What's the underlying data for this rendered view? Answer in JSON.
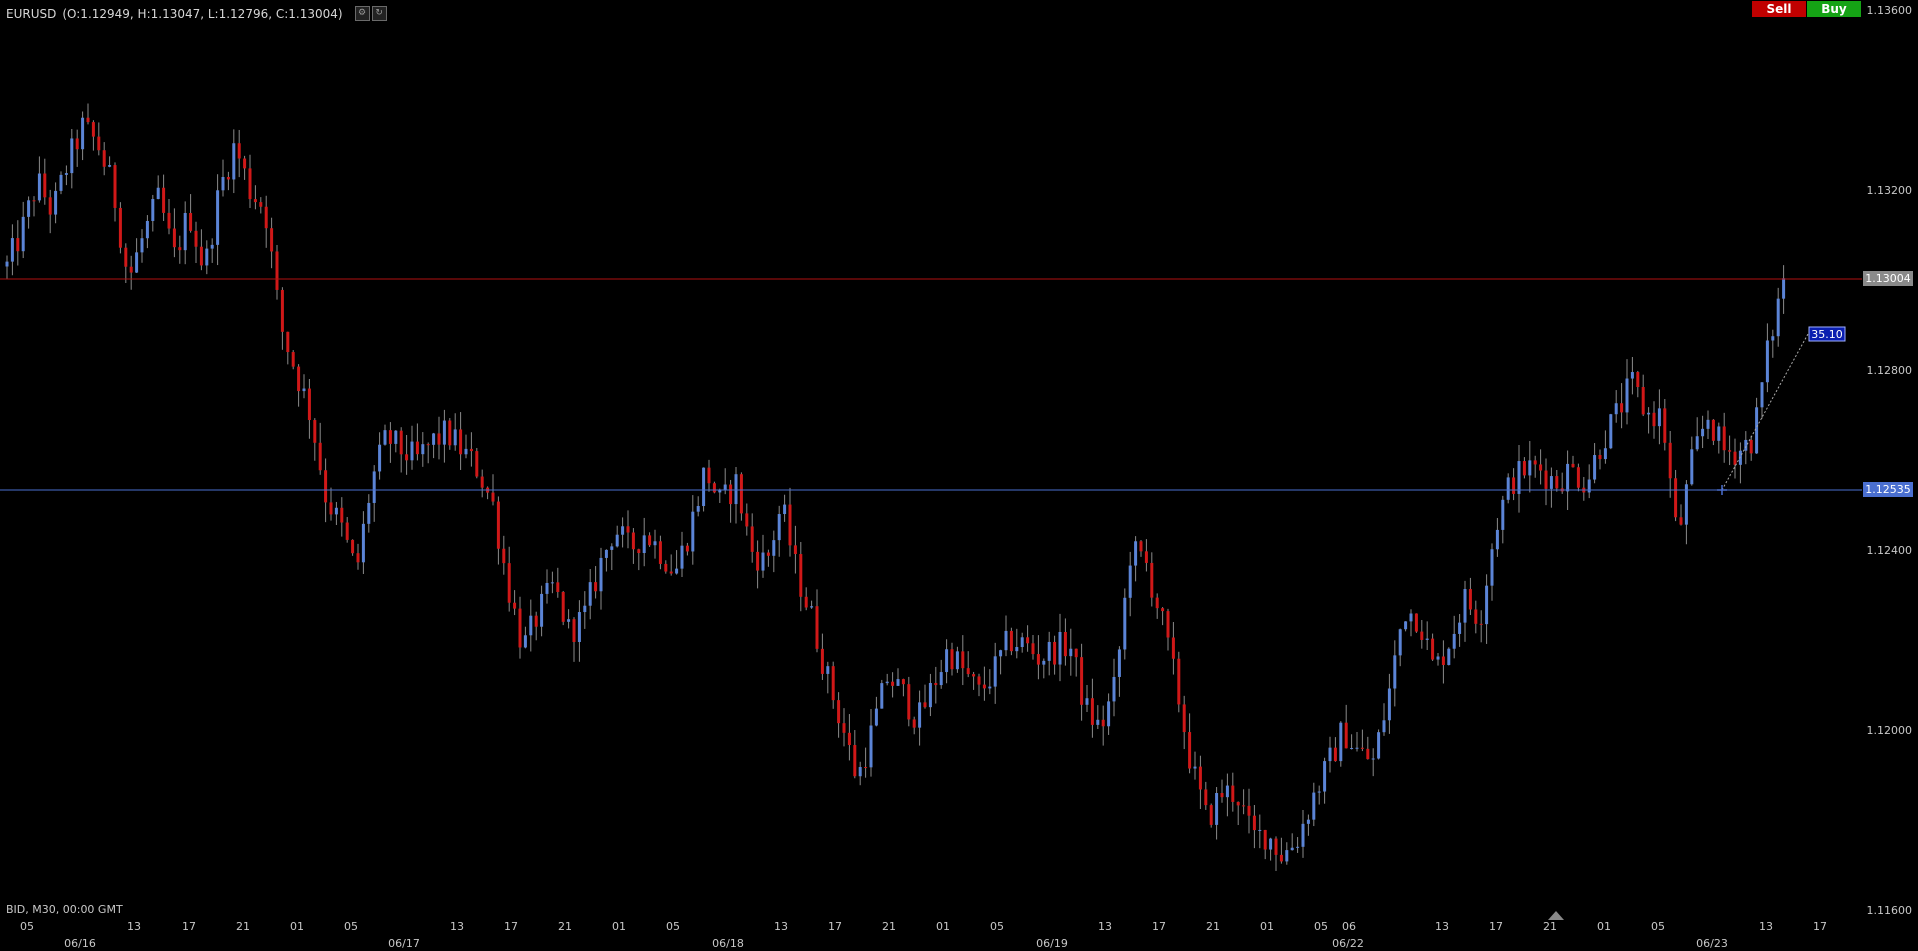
{
  "header": {
    "symbol": "EURUSD",
    "ohlc": "(O:1.12949, H:1.13047, L:1.12796, C:1.13004)",
    "icons": [
      "settings-icon",
      "refresh-icon"
    ]
  },
  "trade_buttons": {
    "sell_label": "Sell",
    "buy_label": "Buy",
    "sell_color": "#c00000",
    "buy_color": "#15a315"
  },
  "footer_text": "BID, M30, 00:00 GMT",
  "price_axis": {
    "ticks": [
      "1.13600",
      "1.13200",
      "1.12800",
      "1.12400",
      "1.12000",
      "1.11600"
    ],
    "current_price_label": "1.13004",
    "line_price_label": "1.12535"
  },
  "time_axis": {
    "hour_labels": [
      "05",
      "13",
      "17",
      "21",
      "01",
      "05",
      "13",
      "17",
      "21",
      "01",
      "05",
      "13",
      "17",
      "21",
      "01",
      "05",
      "13",
      "17",
      "21",
      "01",
      "05",
      "06",
      "13",
      "17",
      "21",
      "01",
      "05",
      "13",
      "17"
    ],
    "date_labels": [
      "06/16",
      "06/17",
      "06/18",
      "06/19",
      "06/22",
      "06/23"
    ]
  },
  "overlay": {
    "measure_label": "35.10"
  },
  "colors": {
    "bullish": "#5b84d6",
    "bearish": "#d01818",
    "current_line": "#b01010",
    "horizontal_line": "#4a6fd0"
  },
  "chart_data": {
    "type": "candlestick",
    "symbol": "EURUSD",
    "timeframe": "M30",
    "ylim": [
      1.116,
      1.136
    ],
    "close_series": [
      1.1303,
      1.1311,
      1.1322,
      1.1315,
      1.1326,
      1.1334,
      1.133,
      1.132,
      1.13,
      1.131,
      1.1318,
      1.1305,
      1.1315,
      1.1302,
      1.132,
      1.133,
      1.132,
      1.1316,
      1.129,
      1.128,
      1.127,
      1.1252,
      1.1245,
      1.1235,
      1.1255,
      1.1265,
      1.1262,
      1.126,
      1.1264,
      1.1266,
      1.1262,
      1.1258,
      1.125,
      1.1232,
      1.1218,
      1.1226,
      1.1232,
      1.1222,
      1.1225,
      1.1236,
      1.1245,
      1.124,
      1.1244,
      1.124,
      1.1235,
      1.1245,
      1.1258,
      1.125,
      1.1255,
      1.124,
      1.1237,
      1.125,
      1.1235,
      1.1225,
      1.1212,
      1.1201,
      1.1189,
      1.12,
      1.1212,
      1.1208,
      1.1202,
      1.121,
      1.1218,
      1.1213,
      1.1208,
      1.1213,
      1.122,
      1.1219,
      1.1216,
      1.1218,
      1.1219,
      1.1205,
      1.12,
      1.121,
      1.124,
      1.1237,
      1.1225,
      1.121,
      1.1192,
      1.118,
      1.1186,
      1.1186,
      1.1176,
      1.1177,
      1.1172,
      1.1176,
      1.1185,
      1.1192,
      1.12,
      1.1195,
      1.1193,
      1.1208,
      1.1227,
      1.1225,
      1.1213,
      1.122,
      1.1229,
      1.1225,
      1.1245,
      1.1255,
      1.1258,
      1.1258,
      1.1255,
      1.1258,
      1.1255,
      1.1264,
      1.127,
      1.1277,
      1.127,
      1.127,
      1.1242,
      1.126,
      1.127,
      1.1262,
      1.1262,
      1.1265,
      1.1285,
      1.13
    ],
    "current_price": 1.13004,
    "horizontal_line": 1.12535,
    "measure_value": "35.10"
  }
}
